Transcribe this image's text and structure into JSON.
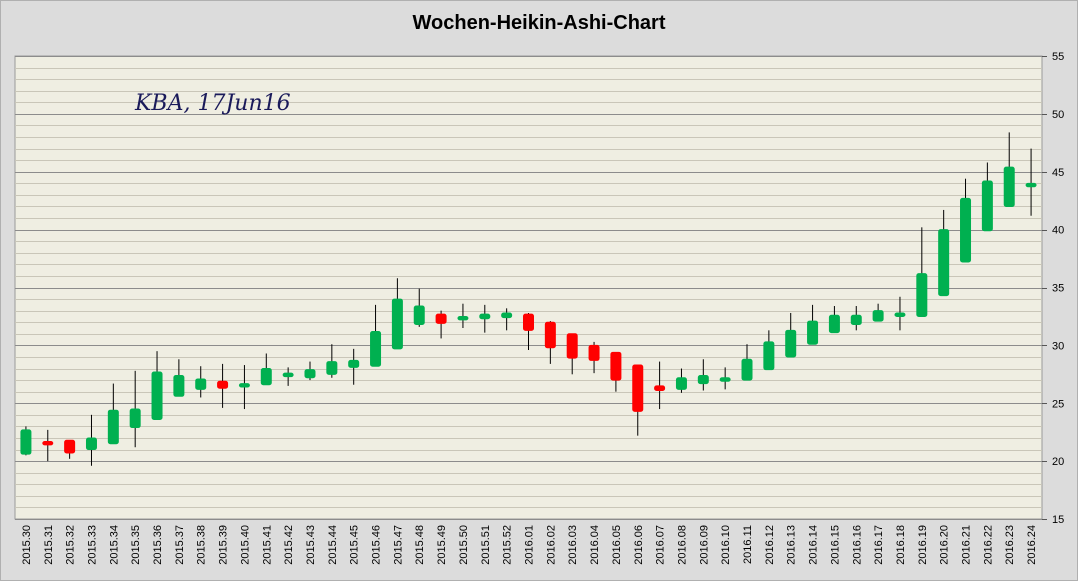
{
  "chart_data": {
    "type": "candlestick",
    "title": "Wochen-Heikin-Ashi-Chart",
    "annotation": "KBA, 17Jun16",
    "ylim": [
      15,
      55
    ],
    "ytick_step": 5,
    "minor_step": 1,
    "y_axis_side": "right",
    "grid": true,
    "colors": {
      "up": "#00b050",
      "down": "#ff0000",
      "plot_bg": "#efeee2",
      "major_grid": "#8c8c8c",
      "minor_grid": "#c9c6b8"
    },
    "candles": [
      {
        "x": "2015.30",
        "open": 20.6,
        "close": 22.7,
        "high": 23.0,
        "low": 20.5
      },
      {
        "x": "2015.31",
        "open": 21.7,
        "close": 21.4,
        "high": 22.7,
        "low": 20.0
      },
      {
        "x": "2015.32",
        "open": 21.8,
        "close": 20.7,
        "high": 21.8,
        "low": 20.2
      },
      {
        "x": "2015.33",
        "open": 21.0,
        "close": 22.0,
        "high": 24.0,
        "low": 19.6
      },
      {
        "x": "2015.34",
        "open": 21.5,
        "close": 24.4,
        "high": 26.7,
        "low": 21.5
      },
      {
        "x": "2015.35",
        "open": 22.9,
        "close": 24.5,
        "high": 27.8,
        "low": 21.2
      },
      {
        "x": "2015.36",
        "open": 23.6,
        "close": 27.7,
        "high": 29.5,
        "low": 23.6
      },
      {
        "x": "2015.37",
        "open": 25.6,
        "close": 27.4,
        "high": 28.8,
        "low": 25.6
      },
      {
        "x": "2015.38",
        "open": 26.2,
        "close": 27.1,
        "high": 28.2,
        "low": 25.5
      },
      {
        "x": "2015.39",
        "open": 26.9,
        "close": 26.3,
        "high": 28.4,
        "low": 24.6
      },
      {
        "x": "2015.40",
        "open": 26.4,
        "close": 26.7,
        "high": 28.3,
        "low": 24.5
      },
      {
        "x": "2015.41",
        "open": 26.6,
        "close": 28.0,
        "high": 29.3,
        "low": 26.6
      },
      {
        "x": "2015.42",
        "open": 27.3,
        "close": 27.6,
        "high": 28.1,
        "low": 26.5
      },
      {
        "x": "2015.43",
        "open": 27.2,
        "close": 27.9,
        "high": 28.6,
        "low": 27.0
      },
      {
        "x": "2015.44",
        "open": 27.5,
        "close": 28.6,
        "high": 30.1,
        "low": 27.2
      },
      {
        "x": "2015.45",
        "open": 28.1,
        "close": 28.7,
        "high": 29.7,
        "low": 26.6
      },
      {
        "x": "2015.46",
        "open": 28.2,
        "close": 31.2,
        "high": 33.5,
        "low": 28.2
      },
      {
        "x": "2015.47",
        "open": 29.7,
        "close": 34.0,
        "high": 35.8,
        "low": 29.7
      },
      {
        "x": "2015.48",
        "open": 31.8,
        "close": 33.4,
        "high": 34.9,
        "low": 31.6
      },
      {
        "x": "2015.49",
        "open": 32.7,
        "close": 31.9,
        "high": 33.0,
        "low": 30.6
      },
      {
        "x": "2015.50",
        "open": 32.2,
        "close": 32.5,
        "high": 33.6,
        "low": 31.5
      },
      {
        "x": "2015.51",
        "open": 32.3,
        "close": 32.7,
        "high": 33.5,
        "low": 31.1
      },
      {
        "x": "2015.52",
        "open": 32.4,
        "close": 32.8,
        "high": 33.2,
        "low": 31.3
      },
      {
        "x": "2016.01",
        "open": 32.7,
        "close": 31.3,
        "high": 32.8,
        "low": 29.6
      },
      {
        "x": "2016.02",
        "open": 32.0,
        "close": 29.8,
        "high": 32.1,
        "low": 28.4
      },
      {
        "x": "2016.03",
        "open": 31.0,
        "close": 28.9,
        "high": 31.0,
        "low": 27.5
      },
      {
        "x": "2016.04",
        "open": 30.0,
        "close": 28.7,
        "high": 30.3,
        "low": 27.6
      },
      {
        "x": "2016.05",
        "open": 29.4,
        "close": 27.0,
        "high": 29.4,
        "low": 26.0
      },
      {
        "x": "2016.06",
        "open": 28.3,
        "close": 24.3,
        "high": 28.3,
        "low": 22.2
      },
      {
        "x": "2016.07",
        "open": 26.5,
        "close": 26.1,
        "high": 28.6,
        "low": 24.5
      },
      {
        "x": "2016.08",
        "open": 26.2,
        "close": 27.2,
        "high": 28.0,
        "low": 25.9
      },
      {
        "x": "2016.09",
        "open": 26.7,
        "close": 27.4,
        "high": 28.8,
        "low": 26.1
      },
      {
        "x": "2016.10",
        "open": 26.9,
        "close": 27.2,
        "high": 28.1,
        "low": 26.2
      },
      {
        "x": "2016.11",
        "open": 27.0,
        "close": 28.8,
        "high": 30.1,
        "low": 27.0
      },
      {
        "x": "2016.12",
        "open": 27.9,
        "close": 30.3,
        "high": 31.3,
        "low": 27.9
      },
      {
        "x": "2016.13",
        "open": 29.0,
        "close": 31.3,
        "high": 32.8,
        "low": 29.0
      },
      {
        "x": "2016.14",
        "open": 30.1,
        "close": 32.1,
        "high": 33.5,
        "low": 30.1
      },
      {
        "x": "2016.15",
        "open": 31.1,
        "close": 32.6,
        "high": 33.4,
        "low": 31.1
      },
      {
        "x": "2016.16",
        "open": 31.8,
        "close": 32.6,
        "high": 33.4,
        "low": 31.3
      },
      {
        "x": "2016.17",
        "open": 32.1,
        "close": 33.0,
        "high": 33.6,
        "low": 32.1
      },
      {
        "x": "2016.18",
        "open": 32.5,
        "close": 32.8,
        "high": 34.2,
        "low": 31.3
      },
      {
        "x": "2016.19",
        "open": 32.5,
        "close": 36.2,
        "high": 40.2,
        "low": 32.5
      },
      {
        "x": "2016.20",
        "open": 34.3,
        "close": 40.0,
        "high": 41.7,
        "low": 34.3
      },
      {
        "x": "2016.21",
        "open": 37.2,
        "close": 42.7,
        "high": 44.4,
        "low": 37.2
      },
      {
        "x": "2016.22",
        "open": 39.9,
        "close": 44.2,
        "high": 45.8,
        "low": 39.9
      },
      {
        "x": "2016.23",
        "open": 42.0,
        "close": 45.4,
        "high": 48.4,
        "low": 42.0
      },
      {
        "x": "2016.24",
        "open": 43.7,
        "close": 44.0,
        "high": 47.0,
        "low": 41.2
      }
    ]
  }
}
